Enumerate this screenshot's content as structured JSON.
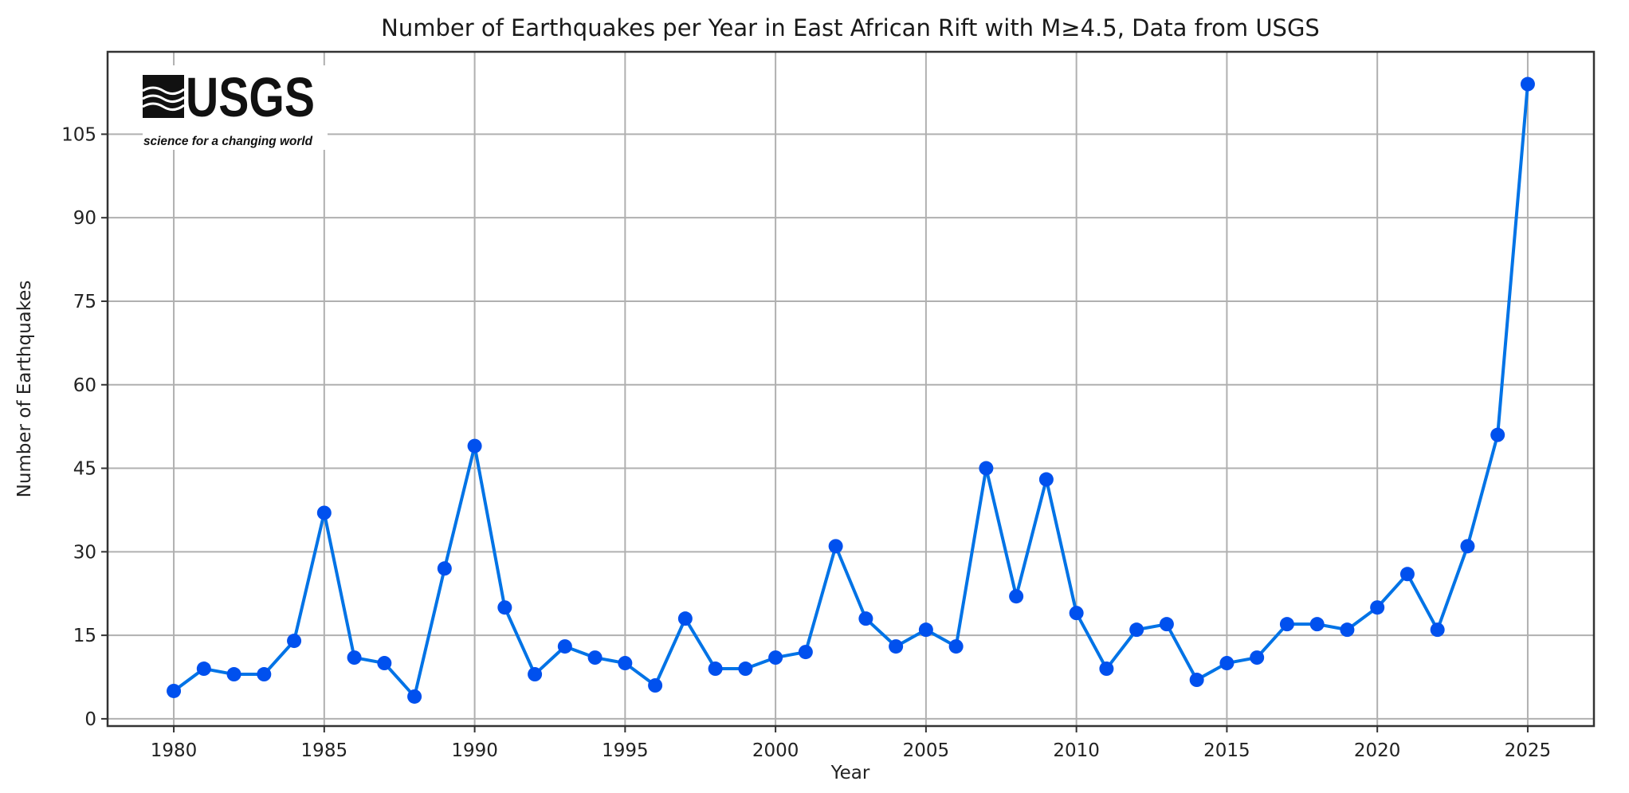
{
  "chart_data": {
    "type": "line",
    "title": "Number of Earthquakes per Year in East African Rift with M≥4.5, Data from USGS",
    "xlabel": "Year",
    "ylabel": "Number of Earthquakes",
    "x": [
      1980,
      1981,
      1982,
      1983,
      1984,
      1985,
      1986,
      1987,
      1988,
      1989,
      1990,
      1991,
      1992,
      1993,
      1994,
      1995,
      1996,
      1997,
      1998,
      1999,
      2000,
      2001,
      2002,
      2003,
      2004,
      2005,
      2006,
      2007,
      2008,
      2009,
      2010,
      2011,
      2012,
      2013,
      2014,
      2015,
      2016,
      2017,
      2018,
      2019,
      2020,
      2021,
      2022,
      2023,
      2024,
      2025
    ],
    "values": [
      5,
      9,
      8,
      8,
      14,
      37,
      11,
      10,
      4,
      27,
      49,
      20,
      8,
      13,
      11,
      10,
      6,
      18,
      9,
      9,
      11,
      12,
      31,
      18,
      13,
      16,
      13,
      45,
      22,
      43,
      19,
      9,
      16,
      17,
      7,
      10,
      11,
      17,
      17,
      16,
      20,
      26,
      16,
      31,
      51,
      114
    ],
    "xlim": [
      1977.8,
      2027.2
    ],
    "ylim": [
      -1.3,
      119.8
    ],
    "xticks": [
      "1980",
      "1985",
      "1990",
      "1995",
      "2000",
      "2005",
      "2010",
      "2015",
      "2020",
      "2025"
    ],
    "yticks": [
      "0",
      "15",
      "30",
      "45",
      "60",
      "75",
      "90",
      "105"
    ],
    "grid": true,
    "line_color": "#0073e6",
    "marker_color": "#0050ee",
    "marker": "circle"
  },
  "logo": {
    "name": "USGS",
    "tagline": "science for a changing world"
  }
}
